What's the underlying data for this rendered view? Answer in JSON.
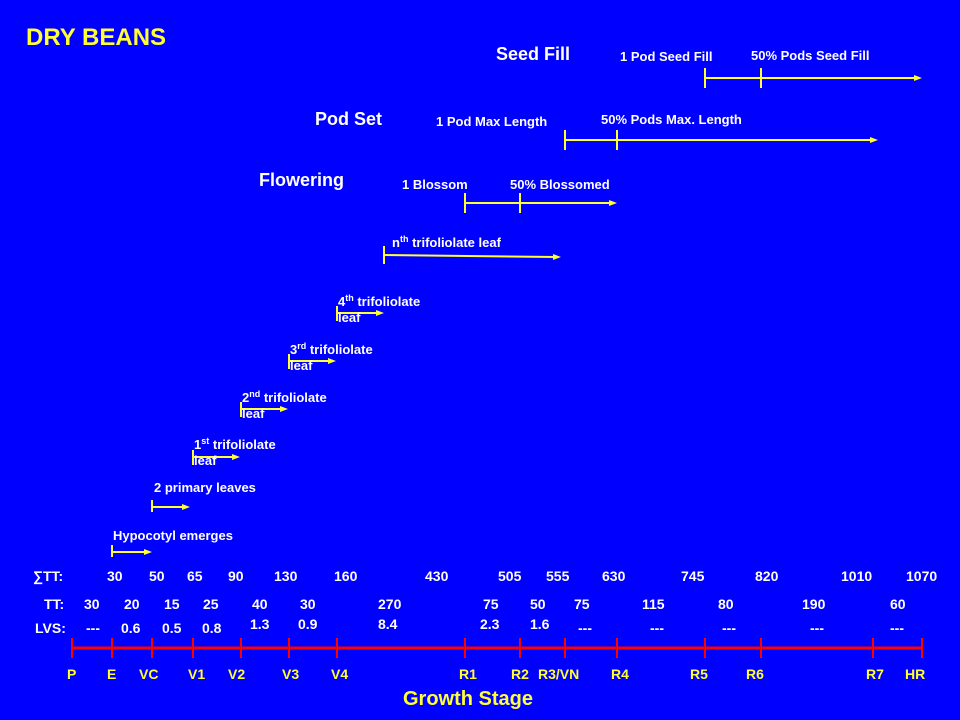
{
  "title": "DRY BEANS",
  "axis_title": "Growth Stage",
  "phases": {
    "seed_fill": "Seed Fill",
    "pod_set": "Pod Set",
    "flowering": "Flowering"
  },
  "events": {
    "pod_seed_fill": "1 Pod Seed Fill",
    "pods_seed_fill_50": "50% Pods Seed Fill",
    "pod_max_length": "1 Pod Max Length",
    "pods_max_length_50": "50% Pods Max. Length",
    "blossom": "1 Blossom",
    "blossomed_50": "50% Blossomed",
    "nth_leaf": {
      "sup": "th",
      "prefix": "n",
      "rest": " trifoliolate  leaf"
    },
    "leaf4": {
      "num": "4",
      "sup": "th",
      "rest": " trifoliolate",
      "line2": "leaf"
    },
    "leaf3": {
      "num": "3",
      "sup": "rd",
      "rest": " trifoliolate",
      "line2": "leaf"
    },
    "leaf2": {
      "num": "2",
      "sup": "nd",
      "rest": " trifoliolate",
      "line2": "leaf"
    },
    "leaf1": {
      "num": "1",
      "sup": "st",
      "rest": " trifoliolate",
      "line2": "leaf"
    },
    "primary_leaves": "2 primary leaves",
    "hypocotyl": "Hypocotyl emerges"
  },
  "rows": {
    "sum_tt": {
      "label": "∑TT:",
      "values": [
        "30",
        "50",
        "65",
        "90",
        "130",
        "160",
        "430",
        "505",
        "555",
        "630",
        "745",
        "820",
        "1010",
        "1070"
      ]
    },
    "tt": {
      "label": "TT:",
      "values": [
        "30",
        "20",
        "15",
        "25",
        "40",
        "30",
        "270",
        "75",
        "50",
        "75",
        "115",
        "80",
        "190",
        "60"
      ]
    },
    "lvs": {
      "label": "LVS:",
      "values": [
        "---",
        "0.6",
        "0.5",
        "0.8",
        "1.3",
        "0.9",
        "8.4",
        "2.3",
        "1.6",
        "---",
        "---",
        "---",
        "---",
        "---"
      ]
    }
  },
  "stages": [
    "P",
    "E",
    "VC",
    "V1",
    "V2",
    "V3",
    "V4",
    "R1",
    "R2",
    "R3/VN",
    "R4",
    "R5",
    "R6",
    "R7",
    "HR"
  ],
  "colors": {
    "background": "#0000FF",
    "text_primary": "#FFFF33",
    "text_secondary": "#FFFFFF",
    "timeline": "#FF0000",
    "arrows": "#FFFF33"
  }
}
